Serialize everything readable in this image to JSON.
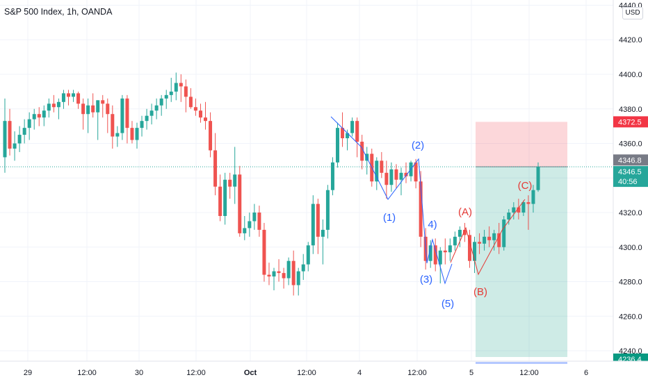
{
  "chart_data": {
    "type": "candlestick",
    "title": "S&P 500 Index, 1h, OANDA",
    "currency": "USD",
    "y_axis": {
      "range": [
        4236,
        4441
      ],
      "ticks": [
        "4440.0",
        "4420.0",
        "4400.0",
        "4380.0",
        "4360.0",
        "4340.0",
        "4320.0",
        "4300.0",
        "4280.0",
        "4260.0",
        "4240.0"
      ]
    },
    "x_axis": {
      "ticks": [
        "29",
        "12:00",
        "30",
        "12:00",
        "Oct",
        "12:00",
        "4",
        "12:00",
        "5",
        "12:00",
        "6"
      ]
    },
    "price_labels": {
      "stop": "4372.5",
      "last": "4346.8",
      "current": "4346.5",
      "countdown": "40:56",
      "target": "4236.4"
    },
    "colors": {
      "up": "#26a69a",
      "down": "#ef5350",
      "wave_blue": "#2962ff",
      "wave_red": "#e53935"
    },
    "position": {
      "entry": 4346.5,
      "stop": 4372.5,
      "target": 4236.4
    },
    "waves_blue": [
      {
        "label": "(1)",
        "price": 4328
      },
      {
        "label": "(2)",
        "price": 4349
      },
      {
        "label": "(3)",
        "price": 4287
      },
      {
        "label": "4)",
        "price": 4305
      },
      {
        "label": "(5)",
        "price": 4279
      }
    ],
    "waves_red": [
      {
        "label": "(A)",
        "price": 4313
      },
      {
        "label": "(B)",
        "price": 4284
      },
      {
        "label": "(C)",
        "price": 4328
      }
    ],
    "candles": [
      {
        "o": 4352,
        "h": 4386,
        "l": 4343,
        "c": 4373
      },
      {
        "o": 4373,
        "h": 4380,
        "l": 4353,
        "c": 4357
      },
      {
        "o": 4357,
        "h": 4367,
        "l": 4350,
        "c": 4360
      },
      {
        "o": 4360,
        "h": 4370,
        "l": 4355,
        "c": 4365
      },
      {
        "o": 4365,
        "h": 4374,
        "l": 4360,
        "c": 4369
      },
      {
        "o": 4369,
        "h": 4378,
        "l": 4362,
        "c": 4374
      },
      {
        "o": 4374,
        "h": 4380,
        "l": 4368,
        "c": 4377
      },
      {
        "o": 4377,
        "h": 4381,
        "l": 4370,
        "c": 4375
      },
      {
        "o": 4375,
        "h": 4382,
        "l": 4370,
        "c": 4379
      },
      {
        "o": 4379,
        "h": 4386,
        "l": 4375,
        "c": 4383
      },
      {
        "o": 4383,
        "h": 4388,
        "l": 4378,
        "c": 4381
      },
      {
        "o": 4381,
        "h": 4386,
        "l": 4374,
        "c": 4384
      },
      {
        "o": 4384,
        "h": 4391,
        "l": 4380,
        "c": 4389
      },
      {
        "o": 4389,
        "h": 4391,
        "l": 4382,
        "c": 4387
      },
      {
        "o": 4387,
        "h": 4391,
        "l": 4384,
        "c": 4389
      },
      {
        "o": 4389,
        "h": 4390,
        "l": 4380,
        "c": 4383
      },
      {
        "o": 4383,
        "h": 4386,
        "l": 4368,
        "c": 4377
      },
      {
        "o": 4377,
        "h": 4386,
        "l": 4366,
        "c": 4382
      },
      {
        "o": 4382,
        "h": 4389,
        "l": 4375,
        "c": 4378
      },
      {
        "o": 4378,
        "h": 4385,
        "l": 4362,
        "c": 4385
      },
      {
        "o": 4385,
        "h": 4388,
        "l": 4375,
        "c": 4383
      },
      {
        "o": 4383,
        "h": 4386,
        "l": 4366,
        "c": 4377
      },
      {
        "o": 4377,
        "h": 4382,
        "l": 4357,
        "c": 4364
      },
      {
        "o": 4364,
        "h": 4370,
        "l": 4358,
        "c": 4366
      },
      {
        "o": 4366,
        "h": 4388,
        "l": 4362,
        "c": 4386
      },
      {
        "o": 4386,
        "h": 4388,
        "l": 4360,
        "c": 4369
      },
      {
        "o": 4369,
        "h": 4373,
        "l": 4360,
        "c": 4362
      },
      {
        "o": 4362,
        "h": 4372,
        "l": 4357,
        "c": 4369
      },
      {
        "o": 4369,
        "h": 4376,
        "l": 4364,
        "c": 4373
      },
      {
        "o": 4373,
        "h": 4380,
        "l": 4368,
        "c": 4376
      },
      {
        "o": 4376,
        "h": 4383,
        "l": 4371,
        "c": 4379
      },
      {
        "o": 4379,
        "h": 4386,
        "l": 4374,
        "c": 4382
      },
      {
        "o": 4382,
        "h": 4388,
        "l": 4376,
        "c": 4386
      },
      {
        "o": 4386,
        "h": 4391,
        "l": 4380,
        "c": 4388
      },
      {
        "o": 4388,
        "h": 4398,
        "l": 4384,
        "c": 4390
      },
      {
        "o": 4390,
        "h": 4401,
        "l": 4385,
        "c": 4395
      },
      {
        "o": 4395,
        "h": 4400,
        "l": 4384,
        "c": 4393
      },
      {
        "o": 4393,
        "h": 4397,
        "l": 4378,
        "c": 4387
      },
      {
        "o": 4387,
        "h": 4392,
        "l": 4380,
        "c": 4381
      },
      {
        "o": 4381,
        "h": 4386,
        "l": 4376,
        "c": 4379
      },
      {
        "o": 4379,
        "h": 4383,
        "l": 4372,
        "c": 4375
      },
      {
        "o": 4375,
        "h": 4384,
        "l": 4368,
        "c": 4373
      },
      {
        "o": 4373,
        "h": 4378,
        "l": 4352,
        "c": 4356
      },
      {
        "o": 4356,
        "h": 4366,
        "l": 4330,
        "c": 4335
      },
      {
        "o": 4335,
        "h": 4342,
        "l": 4315,
        "c": 4318
      },
      {
        "o": 4318,
        "h": 4343,
        "l": 4313,
        "c": 4339
      },
      {
        "o": 4339,
        "h": 4343,
        "l": 4328,
        "c": 4335
      },
      {
        "o": 4335,
        "h": 4358,
        "l": 4325,
        "c": 4342
      },
      {
        "o": 4342,
        "h": 4347,
        "l": 4306,
        "c": 4308
      },
      {
        "o": 4308,
        "h": 4318,
        "l": 4304,
        "c": 4311
      },
      {
        "o": 4311,
        "h": 4320,
        "l": 4306,
        "c": 4315
      },
      {
        "o": 4315,
        "h": 4325,
        "l": 4310,
        "c": 4320
      },
      {
        "o": 4320,
        "h": 4324,
        "l": 4306,
        "c": 4310
      },
      {
        "o": 4310,
        "h": 4314,
        "l": 4280,
        "c": 4284
      },
      {
        "o": 4284,
        "h": 4291,
        "l": 4278,
        "c": 4283
      },
      {
        "o": 4283,
        "h": 4288,
        "l": 4275,
        "c": 4286
      },
      {
        "o": 4286,
        "h": 4293,
        "l": 4280,
        "c": 4285
      },
      {
        "o": 4285,
        "h": 4288,
        "l": 4276,
        "c": 4282
      },
      {
        "o": 4282,
        "h": 4294,
        "l": 4278,
        "c": 4292
      },
      {
        "o": 4292,
        "h": 4298,
        "l": 4272,
        "c": 4278
      },
      {
        "o": 4278,
        "h": 4288,
        "l": 4272,
        "c": 4286
      },
      {
        "o": 4286,
        "h": 4296,
        "l": 4281,
        "c": 4290
      },
      {
        "o": 4290,
        "h": 4303,
        "l": 4286,
        "c": 4301
      },
      {
        "o": 4301,
        "h": 4330,
        "l": 4296,
        "c": 4325
      },
      {
        "o": 4325,
        "h": 4328,
        "l": 4296,
        "c": 4306
      },
      {
        "o": 4306,
        "h": 4316,
        "l": 4290,
        "c": 4310
      },
      {
        "o": 4310,
        "h": 4336,
        "l": 4305,
        "c": 4333
      },
      {
        "o": 4333,
        "h": 4352,
        "l": 4330,
        "c": 4349
      },
      {
        "o": 4349,
        "h": 4372,
        "l": 4346,
        "c": 4369
      },
      {
        "o": 4369,
        "h": 4378,
        "l": 4358,
        "c": 4363
      },
      {
        "o": 4363,
        "h": 4368,
        "l": 4356,
        "c": 4366
      },
      {
        "o": 4366,
        "h": 4375,
        "l": 4364,
        "c": 4373
      },
      {
        "o": 4373,
        "h": 4375,
        "l": 4352,
        "c": 4361
      },
      {
        "o": 4361,
        "h": 4365,
        "l": 4345,
        "c": 4350
      },
      {
        "o": 4350,
        "h": 4358,
        "l": 4342,
        "c": 4354
      },
      {
        "o": 4354,
        "h": 4357,
        "l": 4335,
        "c": 4338
      },
      {
        "o": 4338,
        "h": 4352,
        "l": 4333,
        "c": 4350
      },
      {
        "o": 4350,
        "h": 4355,
        "l": 4340,
        "c": 4343
      },
      {
        "o": 4343,
        "h": 4350,
        "l": 4328,
        "c": 4336
      },
      {
        "o": 4336,
        "h": 4349,
        "l": 4332,
        "c": 4345
      },
      {
        "o": 4345,
        "h": 4348,
        "l": 4334,
        "c": 4339
      },
      {
        "o": 4339,
        "h": 4346,
        "l": 4330,
        "c": 4343
      },
      {
        "o": 4343,
        "h": 4349,
        "l": 4337,
        "c": 4341
      },
      {
        "o": 4341,
        "h": 4350,
        "l": 4338,
        "c": 4349
      },
      {
        "o": 4349,
        "h": 4351,
        "l": 4334,
        "c": 4338
      },
      {
        "o": 4338,
        "h": 4344,
        "l": 4300,
        "c": 4306
      },
      {
        "o": 4306,
        "h": 4311,
        "l": 4287,
        "c": 4292
      },
      {
        "o": 4292,
        "h": 4304,
        "l": 4288,
        "c": 4301
      },
      {
        "o": 4301,
        "h": 4305,
        "l": 4286,
        "c": 4290
      },
      {
        "o": 4290,
        "h": 4300,
        "l": 4279,
        "c": 4298
      },
      {
        "o": 4298,
        "h": 4305,
        "l": 4290,
        "c": 4297
      },
      {
        "o": 4297,
        "h": 4305,
        "l": 4292,
        "c": 4301
      },
      {
        "o": 4301,
        "h": 4309,
        "l": 4298,
        "c": 4306
      },
      {
        "o": 4306,
        "h": 4312,
        "l": 4300,
        "c": 4310
      },
      {
        "o": 4310,
        "h": 4314,
        "l": 4303,
        "c": 4307
      },
      {
        "o": 4307,
        "h": 4310,
        "l": 4288,
        "c": 4292
      },
      {
        "o": 4292,
        "h": 4306,
        "l": 4285,
        "c": 4303
      },
      {
        "o": 4303,
        "h": 4308,
        "l": 4296,
        "c": 4302
      },
      {
        "o": 4302,
        "h": 4310,
        "l": 4298,
        "c": 4306
      },
      {
        "o": 4306,
        "h": 4312,
        "l": 4300,
        "c": 4304
      },
      {
        "o": 4304,
        "h": 4310,
        "l": 4298,
        "c": 4308
      },
      {
        "o": 4308,
        "h": 4314,
        "l": 4296,
        "c": 4300
      },
      {
        "o": 4300,
        "h": 4318,
        "l": 4298,
        "c": 4316
      },
      {
        "o": 4316,
        "h": 4322,
        "l": 4313,
        "c": 4320
      },
      {
        "o": 4320,
        "h": 4326,
        "l": 4316,
        "c": 4323
      },
      {
        "o": 4323,
        "h": 4328,
        "l": 4316,
        "c": 4320
      },
      {
        "o": 4320,
        "h": 4327,
        "l": 4318,
        "c": 4326
      },
      {
        "o": 4326,
        "h": 4330,
        "l": 4310,
        "c": 4325
      },
      {
        "o": 4325,
        "h": 4336,
        "l": 4320,
        "c": 4333
      },
      {
        "o": 4333,
        "h": 4349,
        "l": 4332,
        "c": 4346.5
      }
    ]
  }
}
